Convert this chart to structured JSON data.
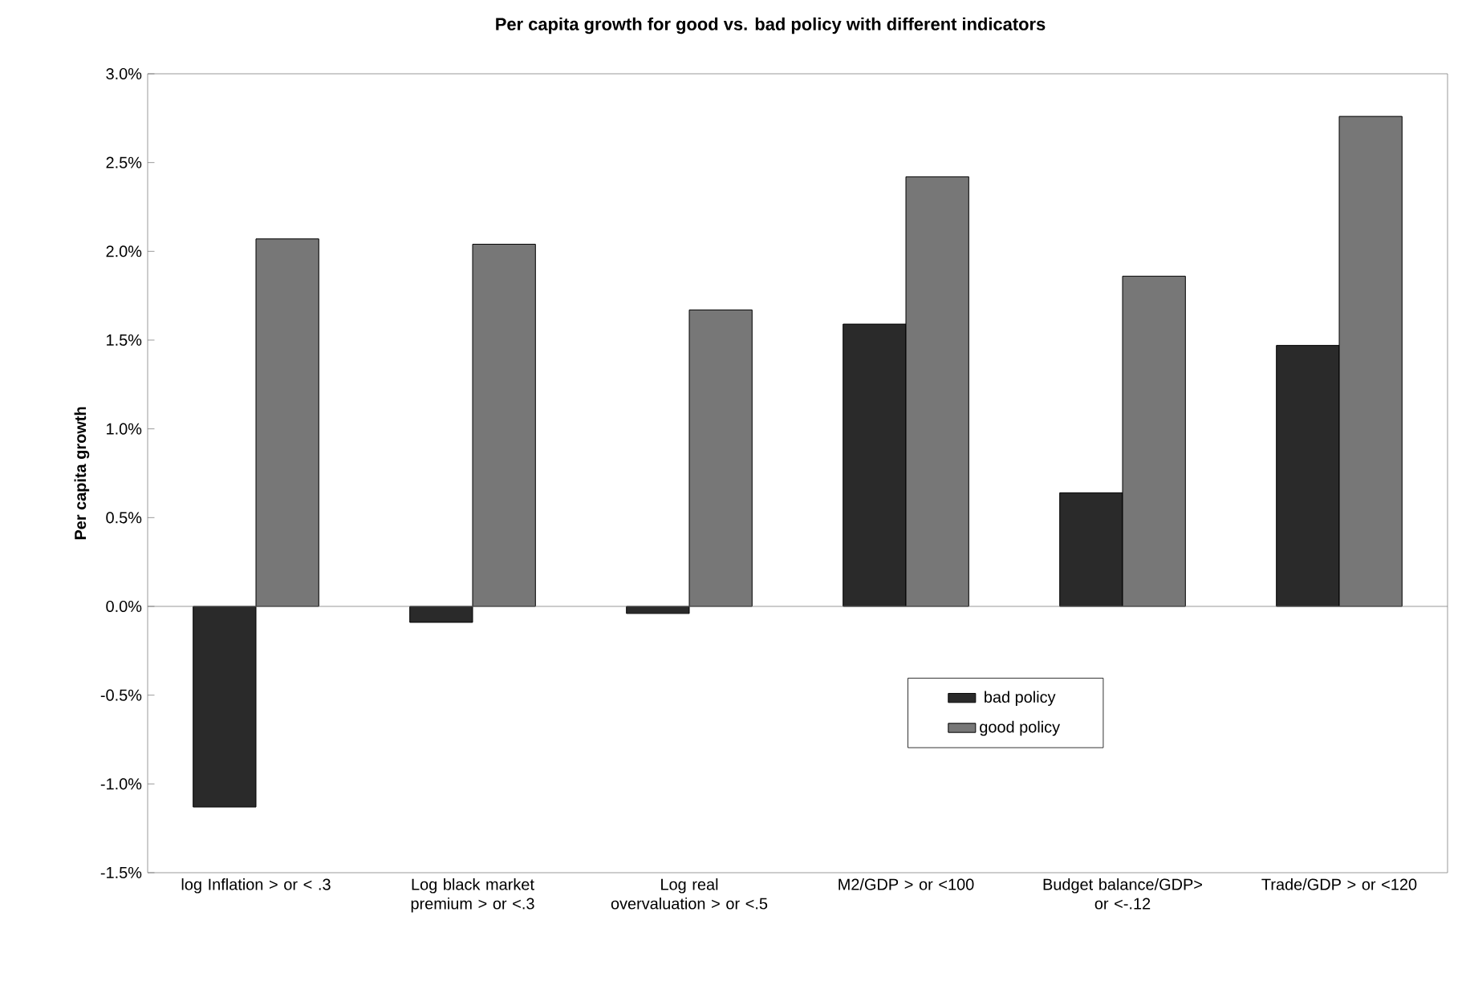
{
  "chart_data": {
    "type": "bar",
    "title": "Per capita growth for good vs. bad policy with different indicators",
    "ylabel": "Per capita growth",
    "categories": [
      "log Inflation > or < .3",
      "Log black market premium > or <.3",
      "Log real overvaluation > or <.5",
      "M2/GDP > or <100",
      "Budget balance/GDP> or <-.12",
      "Trade/GDP > or <120"
    ],
    "series": [
      {
        "name": "bad policy",
        "color": "#2a2a2a",
        "values": [
          -1.13,
          -0.09,
          -0.04,
          1.59,
          0.64,
          1.47
        ]
      },
      {
        "name": "good policy",
        "color": "#777777",
        "values": [
          2.07,
          2.04,
          1.67,
          2.42,
          1.86,
          2.76
        ]
      }
    ],
    "ylim": [
      -1.5,
      3.0
    ],
    "yticks": [
      {
        "value": -1.5,
        "label": "-1.5%"
      },
      {
        "value": -1.0,
        "label": "-1.0%"
      },
      {
        "value": -0.5,
        "label": "-0.5%"
      },
      {
        "value": 0,
        "label": "0.0%"
      },
      {
        "value": 0.5,
        "label": "0.5%"
      },
      {
        "value": 1.0,
        "label": "1.0%"
      },
      {
        "value": 1.5,
        "label": "1.5%"
      },
      {
        "value": 2.0,
        "label": "2.0%"
      },
      {
        "value": 2.5,
        "label": "2.5%"
      },
      {
        "value": 3.0,
        "label": "3.0%"
      }
    ],
    "legend": "bottom right"
  }
}
